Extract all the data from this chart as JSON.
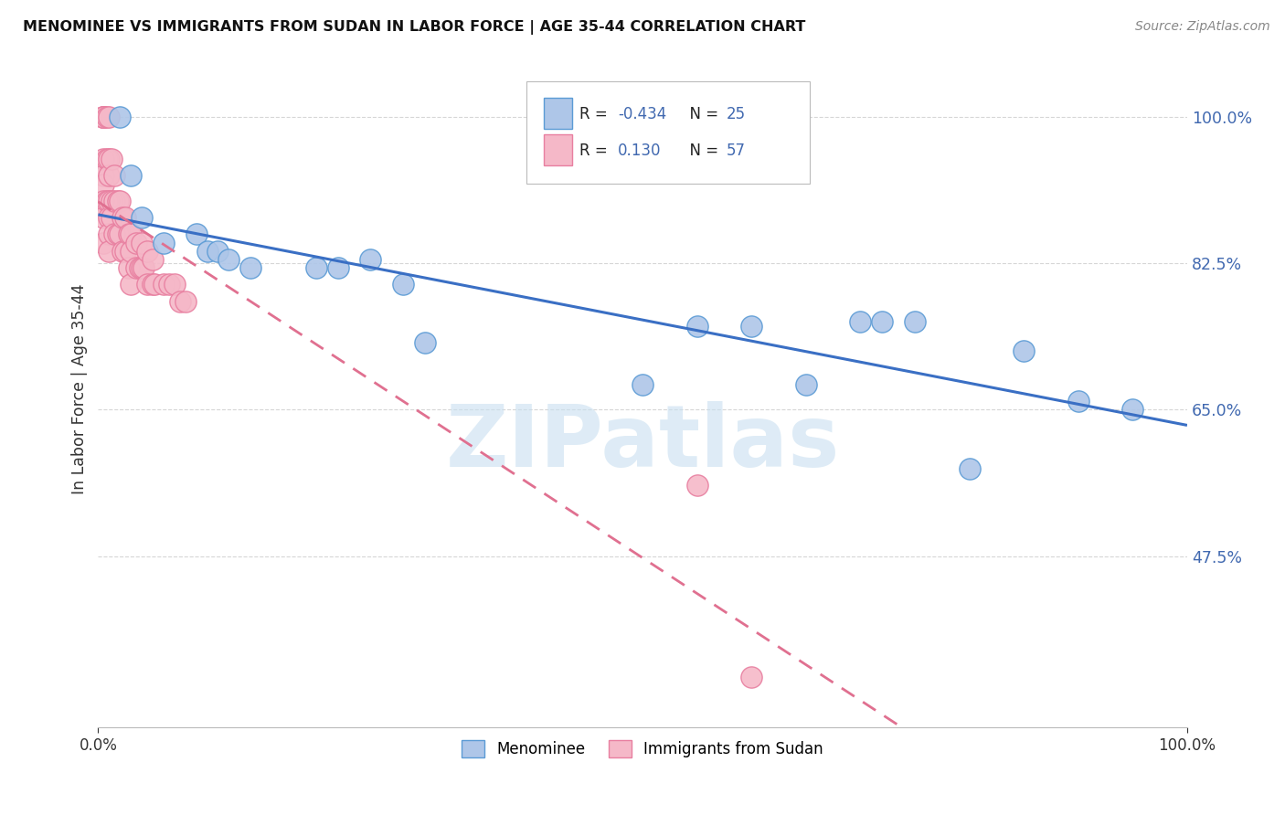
{
  "title": "MENOMINEE VS IMMIGRANTS FROM SUDAN IN LABOR FORCE | AGE 35-44 CORRELATION CHART",
  "source": "Source: ZipAtlas.com",
  "ylabel": "In Labor Force | Age 35-44",
  "xlim": [
    0,
    1
  ],
  "ylim": [
    0.27,
    1.08
  ],
  "yticks": [
    0.475,
    0.65,
    0.825,
    1.0
  ],
  "ytick_labels": [
    "47.5%",
    "65.0%",
    "82.5%",
    "100.0%"
  ],
  "xtick_left": "0.0%",
  "xtick_right": "100.0%",
  "grid_color": "#cccccc",
  "background_color": "#ffffff",
  "menominee_color": "#aec6e8",
  "menominee_edge_color": "#5b9bd5",
  "sudan_color": "#f5b8c8",
  "sudan_edge_color": "#e87fa0",
  "R_menominee": -0.434,
  "N_menominee": 25,
  "R_sudan": 0.13,
  "N_sudan": 57,
  "blue_line_color": "#3a6fc4",
  "pink_line_color": "#e07090",
  "watermark_text": "ZIPatlas",
  "watermark_color": "#c8dff0",
  "menominee_label": "Menominee",
  "sudan_label": "Immigrants from Sudan",
  "menominee_x": [
    0.02,
    0.03,
    0.04,
    0.06,
    0.09,
    0.1,
    0.11,
    0.12,
    0.14,
    0.2,
    0.22,
    0.25,
    0.28,
    0.3,
    0.5,
    0.55,
    0.6,
    0.65,
    0.7,
    0.72,
    0.75,
    0.8,
    0.85,
    0.9,
    0.95
  ],
  "menominee_y": [
    1.0,
    0.93,
    0.88,
    0.85,
    0.86,
    0.84,
    0.84,
    0.83,
    0.82,
    0.82,
    0.82,
    0.83,
    0.8,
    0.73,
    0.68,
    0.75,
    0.75,
    0.68,
    0.755,
    0.755,
    0.755,
    0.58,
    0.72,
    0.66,
    0.65
  ],
  "sudan_x": [
    0.005,
    0.005,
    0.005,
    0.005,
    0.005,
    0.005,
    0.005,
    0.005,
    0.005,
    0.005,
    0.008,
    0.008,
    0.008,
    0.01,
    0.01,
    0.01,
    0.01,
    0.01,
    0.01,
    0.01,
    0.012,
    0.012,
    0.012,
    0.015,
    0.015,
    0.015,
    0.018,
    0.018,
    0.02,
    0.02,
    0.022,
    0.022,
    0.025,
    0.025,
    0.028,
    0.028,
    0.03,
    0.03,
    0.03,
    0.035,
    0.035,
    0.038,
    0.04,
    0.04,
    0.042,
    0.045,
    0.045,
    0.05,
    0.05,
    0.052,
    0.06,
    0.065,
    0.07,
    0.075,
    0.08,
    0.55,
    0.6
  ],
  "sudan_y": [
    1.0,
    1.0,
    1.0,
    1.0,
    0.95,
    0.93,
    0.92,
    0.9,
    0.88,
    0.85,
    1.0,
    0.95,
    0.9,
    1.0,
    0.95,
    0.93,
    0.9,
    0.88,
    0.86,
    0.84,
    0.95,
    0.9,
    0.88,
    0.93,
    0.9,
    0.86,
    0.9,
    0.86,
    0.9,
    0.86,
    0.88,
    0.84,
    0.88,
    0.84,
    0.86,
    0.82,
    0.86,
    0.84,
    0.8,
    0.85,
    0.82,
    0.82,
    0.85,
    0.82,
    0.82,
    0.84,
    0.8,
    0.83,
    0.8,
    0.8,
    0.8,
    0.8,
    0.8,
    0.78,
    0.78,
    0.56,
    0.33
  ]
}
